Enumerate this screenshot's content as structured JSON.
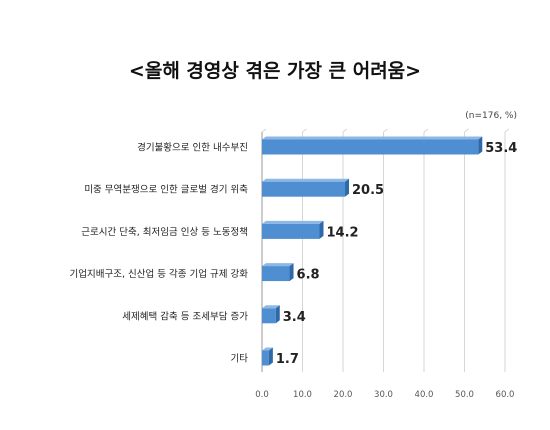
{
  "chart_data": {
    "type": "bar",
    "orientation": "horizontal",
    "title": "<올해 경영상 겪은 가장 큰 어려움>",
    "note": "(n=176, %)",
    "categories": [
      "경기불황으로 인한 내수부진",
      "미중 무역분쟁으로 인한 글로벌 경기 위축",
      "근로시간 단축, 최저임금 인상 등 노동정책",
      "기업지배구조, 신산업 등 각종 기업 규제 강화",
      "세제혜택 감축 등 조세부담 증가",
      "기타"
    ],
    "values": [
      53.4,
      20.5,
      14.2,
      6.8,
      3.4,
      1.7
    ],
    "value_labels": [
      "53.4",
      "20.5",
      "14.2",
      "6.8",
      "3.4",
      "1.7"
    ],
    "xlim": [
      0,
      60
    ],
    "xticks": [
      "0.0",
      "10.0",
      "20.0",
      "30.0",
      "40.0",
      "50.0",
      "60.0"
    ],
    "grid": true,
    "bar_color": "#4f8ed1",
    "bar_side_color": "#2f6aa8",
    "bar_top_color": "#8cb8e6"
  }
}
